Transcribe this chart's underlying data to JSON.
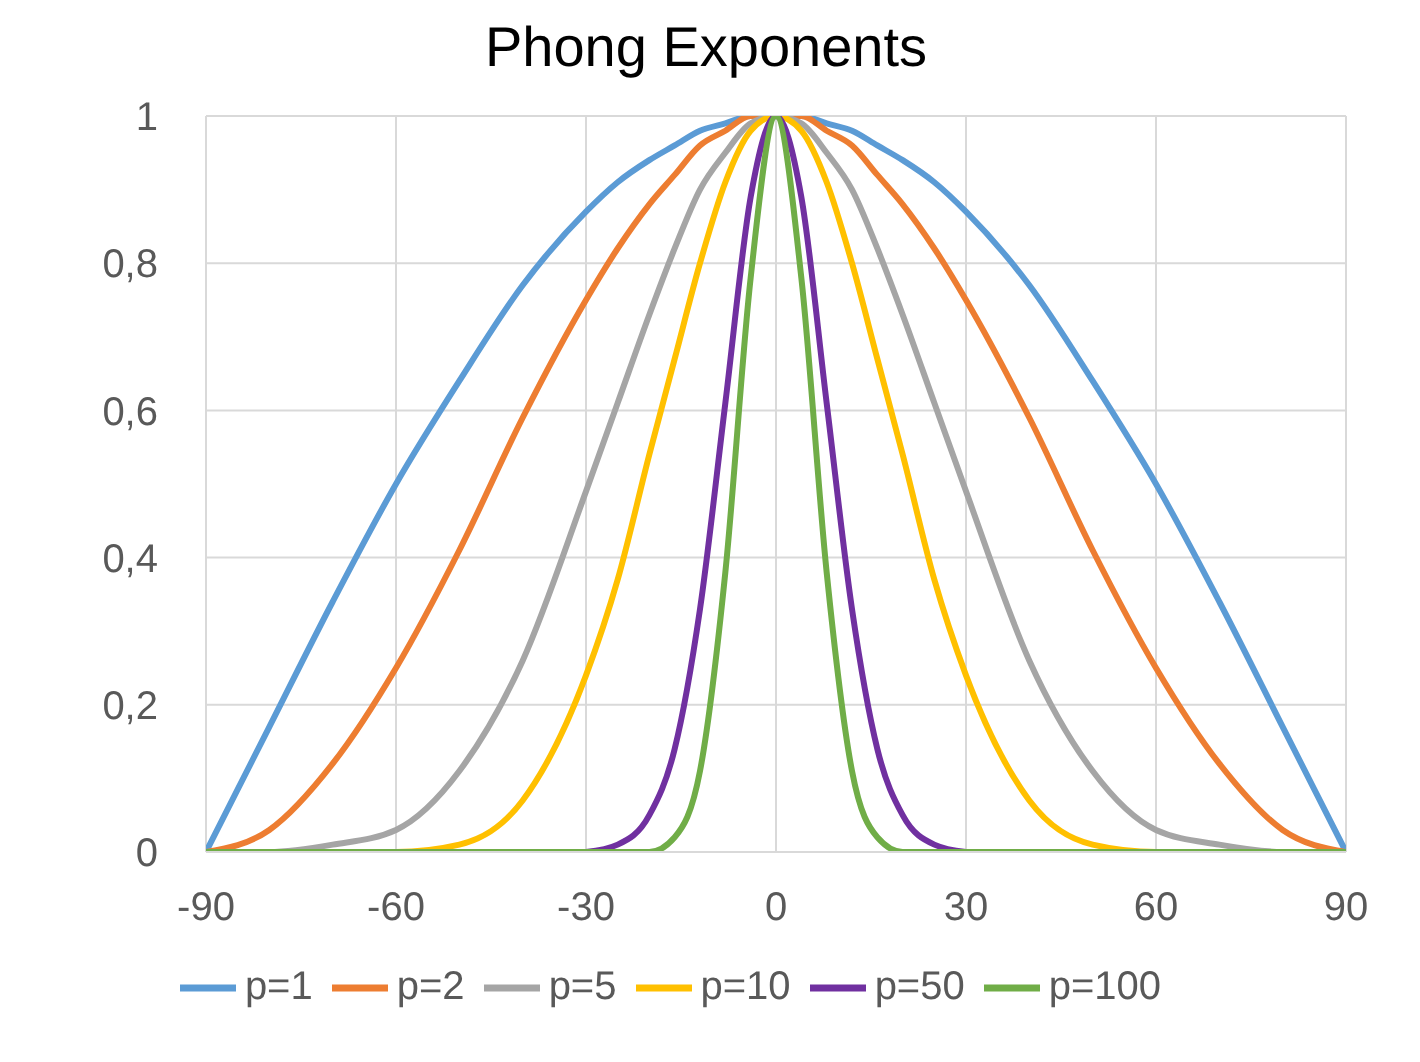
{
  "chart_data": {
    "type": "line",
    "title": "Phong Exponents",
    "x": [
      -90,
      -80,
      -70,
      -60,
      -50,
      -40,
      -30,
      -25,
      -20,
      -16,
      -12,
      -8,
      -4,
      0,
      4,
      8,
      12,
      16,
      20,
      25,
      30,
      40,
      50,
      60,
      70,
      80,
      90
    ],
    "series": [
      {
        "name": "p=1",
        "color": "#5b9bd5",
        "values": [
          0,
          0.17,
          0.34,
          0.5,
          0.64,
          0.77,
          0.87,
          0.91,
          0.94,
          0.96,
          0.98,
          0.99,
          1,
          1,
          1,
          0.99,
          0.98,
          0.96,
          0.94,
          0.91,
          0.87,
          0.77,
          0.64,
          0.5,
          0.34,
          0.17,
          0
        ]
      },
      {
        "name": "p=2",
        "color": "#ed7d31",
        "values": [
          0,
          0.03,
          0.12,
          0.25,
          0.41,
          0.59,
          0.75,
          0.82,
          0.88,
          0.92,
          0.96,
          0.98,
          1,
          1,
          1,
          0.98,
          0.96,
          0.92,
          0.88,
          0.82,
          0.75,
          0.59,
          0.41,
          0.25,
          0.12,
          0.03,
          0
        ]
      },
      {
        "name": "p=5",
        "color": "#a5a5a5",
        "values": [
          0,
          0,
          0.01,
          0.03,
          0.11,
          0.26,
          0.49,
          0.61,
          0.73,
          0.82,
          0.9,
          0.95,
          0.99,
          1,
          0.99,
          0.95,
          0.9,
          0.82,
          0.73,
          0.61,
          0.49,
          0.26,
          0.11,
          0.03,
          0.01,
          0,
          0
        ]
      },
      {
        "name": "p=10",
        "color": "#ffc000",
        "x": [
          -70,
          -60,
          -50,
          -40,
          -30,
          -25,
          -20,
          -16,
          -12,
          -8,
          -4,
          0,
          4,
          8,
          12,
          16,
          20,
          25,
          30,
          40,
          50,
          60,
          70
        ],
        "values": [
          0,
          0,
          0.01,
          0.07,
          0.24,
          0.37,
          0.54,
          0.67,
          0.8,
          0.91,
          0.98,
          1,
          0.98,
          0.91,
          0.8,
          0.67,
          0.54,
          0.37,
          0.24,
          0.07,
          0.01,
          0,
          0
        ]
      },
      {
        "name": "p=50",
        "color": "#7030a0",
        "x": [
          -30,
          -25,
          -20,
          -16,
          -12,
          -8,
          -4,
          0,
          4,
          8,
          12,
          16,
          20,
          25,
          30
        ],
        "values": [
          0,
          0.01,
          0.05,
          0.14,
          0.33,
          0.61,
          0.89,
          1,
          0.89,
          0.61,
          0.33,
          0.14,
          0.05,
          0.01,
          0
        ]
      },
      {
        "name": "p=100",
        "color": "#70ad47",
        "values": [
          0,
          0,
          0,
          0,
          0,
          0,
          0,
          0,
          0,
          0.02,
          0.11,
          0.38,
          0.78,
          1,
          0.78,
          0.38,
          0.11,
          0.02,
          0,
          0,
          0,
          0,
          0,
          0,
          0,
          0,
          0
        ]
      }
    ],
    "xlim": [
      -90,
      90
    ],
    "xticks": [
      -90,
      -60,
      -30,
      0,
      30,
      60,
      90
    ],
    "ylim": [
      0,
      1
    ],
    "yticks": [
      0,
      {
        "value": 0.2,
        "label": "0,2"
      },
      {
        "value": 0.4,
        "label": "0,4"
      },
      {
        "value": 0.6,
        "label": "0,6"
      },
      {
        "value": 0.8,
        "label": "0,8"
      },
      1
    ],
    "grid": true,
    "legend": "bottom",
    "marker": "none",
    "line_style": "solid"
  }
}
